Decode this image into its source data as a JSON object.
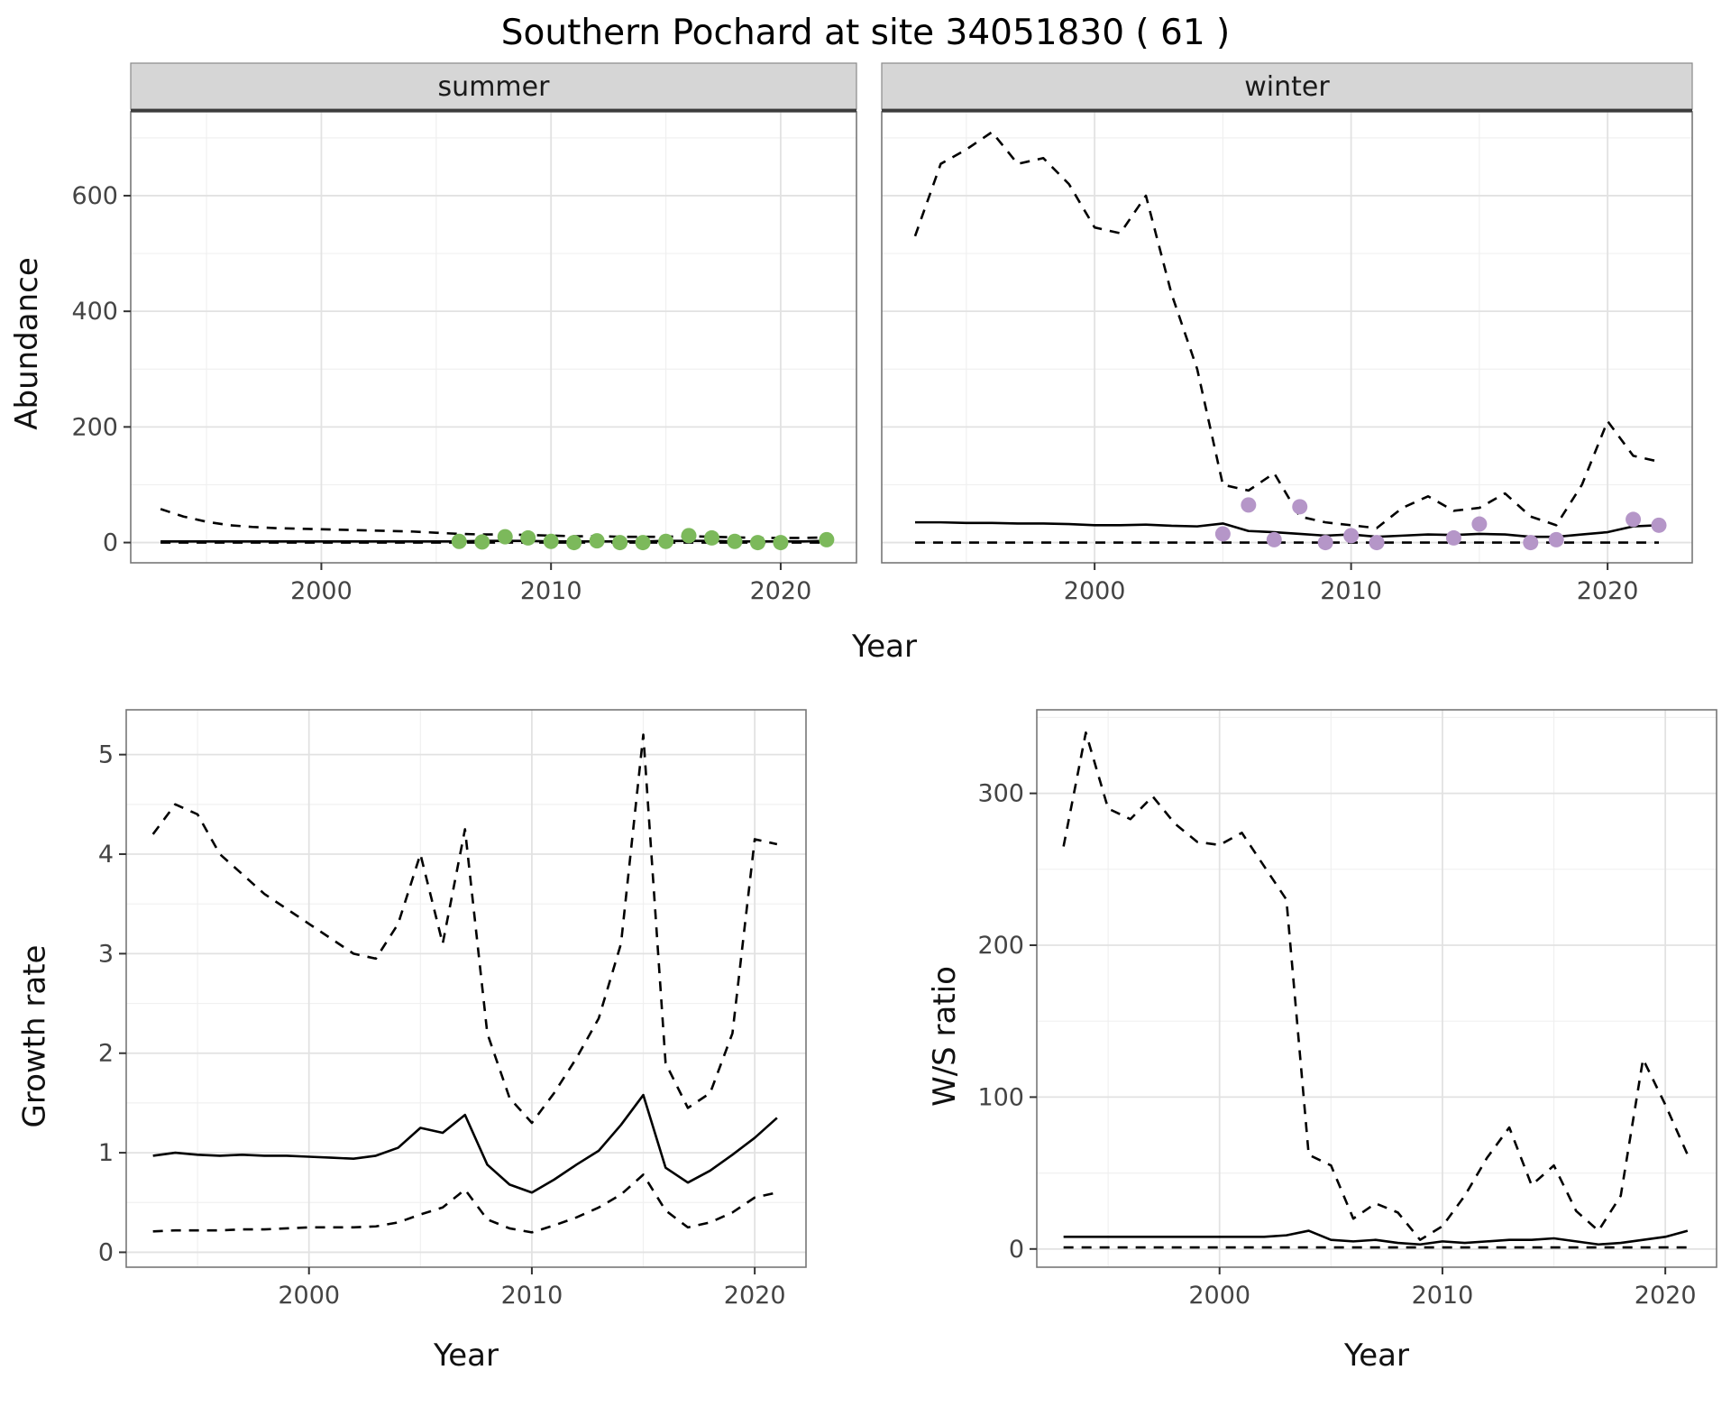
{
  "title": "Southern Pochard at site 34051830 ( 61 )",
  "xlabel": "Year",
  "colors": {
    "summer_points": "#7CB95B",
    "winter_points": "#B596C8",
    "line": "#000000",
    "strip_fill": "#d6d6d6",
    "grid_major": "#e2e2e2",
    "grid_minor": "#f0f0f0",
    "panel_border": "#777777"
  },
  "chart_data": [
    {
      "type": "line",
      "facet": "summer",
      "ylabel": "Abundance",
      "xlabel": "Year",
      "xlim": [
        1991.7,
        2023.3
      ],
      "ylim": [
        -35,
        745
      ],
      "xticks": [
        2000,
        2010,
        2020
      ],
      "yticks": [
        0,
        200,
        400,
        600
      ],
      "xminor": [
        1995,
        2005,
        2015
      ],
      "yminor": [
        100,
        300,
        500,
        700
      ],
      "show_ytick_labels": true,
      "years": [
        1993,
        1994,
        1995,
        1996,
        1997,
        1998,
        1999,
        2000,
        2001,
        2002,
        2003,
        2004,
        2005,
        2006,
        2007,
        2008,
        2009,
        2010,
        2011,
        2012,
        2013,
        2014,
        2015,
        2016,
        2017,
        2018,
        2019,
        2020,
        2021,
        2022
      ],
      "series": [
        {
          "name": "upper_ci",
          "style": "dashed",
          "values": [
            58,
            45,
            36,
            30,
            27,
            25,
            24,
            23,
            22,
            21,
            20,
            19,
            17,
            15,
            14,
            14,
            13,
            12,
            11,
            11,
            10,
            10,
            10,
            11,
            10,
            9,
            8,
            8,
            8,
            9
          ]
        },
        {
          "name": "estimate",
          "style": "solid",
          "values": [
            2,
            2,
            2,
            2,
            2,
            2,
            2,
            2,
            2,
            2,
            2,
            2,
            2,
            2,
            3,
            3,
            3,
            2,
            2,
            2,
            2,
            2,
            3,
            3,
            3,
            2,
            2,
            2,
            2,
            3
          ]
        },
        {
          "name": "lower_ci",
          "style": "dashed",
          "values": [
            0,
            0,
            0,
            0,
            0,
            0,
            0,
            0,
            0,
            0,
            0,
            0,
            0,
            0,
            0,
            0,
            0,
            0,
            0,
            0,
            0,
            0,
            0,
            0,
            0,
            0,
            0,
            0,
            0,
            0
          ]
        }
      ],
      "points": {
        "name": "observed-summer-counts",
        "color": "#7CB95B",
        "x": [
          2006,
          2007,
          2008,
          2009,
          2010,
          2011,
          2012,
          2013,
          2014,
          2015,
          2016,
          2017,
          2018,
          2019,
          2020,
          2022
        ],
        "y": [
          2,
          1,
          10,
          8,
          2,
          0,
          3,
          0,
          0,
          2,
          12,
          8,
          2,
          0,
          0,
          5
        ]
      }
    },
    {
      "type": "line",
      "facet": "winter",
      "ylabel": "Abundance",
      "xlabel": "Year",
      "xlim": [
        1991.7,
        2023.3
      ],
      "ylim": [
        -35,
        745
      ],
      "xticks": [
        2000,
        2010,
        2020
      ],
      "yticks": [
        0,
        200,
        400,
        600
      ],
      "xminor": [
        1995,
        2005,
        2015
      ],
      "yminor": [
        100,
        300,
        500,
        700
      ],
      "show_ytick_labels": false,
      "years": [
        1993,
        1994,
        1995,
        1996,
        1997,
        1998,
        1999,
        2000,
        2001,
        2002,
        2003,
        2004,
        2005,
        2006,
        2007,
        2008,
        2009,
        2010,
        2011,
        2012,
        2013,
        2014,
        2015,
        2016,
        2017,
        2018,
        2019,
        2020,
        2021,
        2022
      ],
      "series": [
        {
          "name": "upper_ci",
          "style": "dashed",
          "values": [
            530,
            655,
            680,
            710,
            655,
            665,
            620,
            545,
            535,
            600,
            430,
            300,
            100,
            90,
            120,
            45,
            35,
            30,
            25,
            60,
            80,
            55,
            60,
            85,
            45,
            30,
            100,
            210,
            150,
            140
          ]
        },
        {
          "name": "estimate",
          "style": "solid",
          "values": [
            35,
            35,
            34,
            34,
            33,
            33,
            32,
            30,
            30,
            31,
            29,
            28,
            33,
            20,
            18,
            15,
            12,
            14,
            10,
            12,
            14,
            13,
            15,
            14,
            10,
            10,
            14,
            18,
            28,
            30
          ]
        },
        {
          "name": "lower_ci",
          "style": "dashed",
          "values": [
            0,
            0,
            0,
            0,
            0,
            0,
            0,
            0,
            0,
            0,
            0,
            0,
            0,
            0,
            0,
            0,
            0,
            0,
            0,
            0,
            0,
            0,
            0,
            0,
            0,
            0,
            0,
            0,
            0,
            0
          ]
        }
      ],
      "points": {
        "name": "observed-winter-counts",
        "color": "#B596C8",
        "x": [
          2005,
          2006,
          2007,
          2008,
          2009,
          2010,
          2011,
          2014,
          2015,
          2017,
          2018,
          2021,
          2022
        ],
        "y": [
          15,
          65,
          5,
          62,
          0,
          12,
          0,
          8,
          32,
          0,
          5,
          40,
          30
        ]
      }
    },
    {
      "type": "line",
      "facet": null,
      "ylabel": "Growth rate",
      "xlabel": "Year",
      "xlim": [
        1991.8,
        2022.3
      ],
      "ylim": [
        -0.15,
        5.45
      ],
      "xticks": [
        2000,
        2010,
        2020
      ],
      "yticks": [
        0,
        1,
        2,
        3,
        4,
        5
      ],
      "xminor": [
        1995,
        2005,
        2015
      ],
      "yminor": [
        0.5,
        1.5,
        2.5,
        3.5,
        4.5
      ],
      "show_ytick_labels": true,
      "years": [
        1993,
        1994,
        1995,
        1996,
        1997,
        1998,
        1999,
        2000,
        2001,
        2002,
        2003,
        2004,
        2005,
        2006,
        2007,
        2008,
        2009,
        2010,
        2011,
        2012,
        2013,
        2014,
        2015,
        2016,
        2017,
        2018,
        2019,
        2020,
        2021
      ],
      "series": [
        {
          "name": "upper_ci",
          "style": "dashed",
          "values": [
            4.2,
            4.5,
            4.4,
            4.0,
            3.8,
            3.6,
            3.45,
            3.3,
            3.15,
            3.0,
            2.95,
            3.3,
            4.0,
            3.1,
            4.25,
            2.2,
            1.55,
            1.3,
            1.6,
            1.95,
            2.35,
            3.1,
            5.2,
            1.9,
            1.45,
            1.6,
            2.2,
            4.15,
            4.1
          ]
        },
        {
          "name": "estimate",
          "style": "solid",
          "values": [
            0.97,
            1.0,
            0.98,
            0.97,
            0.98,
            0.97,
            0.97,
            0.96,
            0.95,
            0.94,
            0.97,
            1.05,
            1.25,
            1.2,
            1.38,
            0.88,
            0.68,
            0.6,
            0.73,
            0.88,
            1.02,
            1.28,
            1.58,
            0.85,
            0.7,
            0.82,
            0.98,
            1.15,
            1.35
          ]
        },
        {
          "name": "lower_ci",
          "style": "dashed",
          "values": [
            0.21,
            0.22,
            0.22,
            0.22,
            0.23,
            0.23,
            0.24,
            0.25,
            0.25,
            0.25,
            0.26,
            0.3,
            0.38,
            0.45,
            0.63,
            0.33,
            0.24,
            0.2,
            0.27,
            0.35,
            0.45,
            0.58,
            0.78,
            0.42,
            0.25,
            0.3,
            0.4,
            0.55,
            0.6
          ]
        }
      ],
      "points": null
    },
    {
      "type": "line",
      "facet": null,
      "ylabel": "W/S ratio",
      "xlabel": "Year",
      "xlim": [
        1991.8,
        2022.3
      ],
      "ylim": [
        -12,
        355
      ],
      "xticks": [
        2000,
        2010,
        2020
      ],
      "yticks": [
        0,
        100,
        200,
        300
      ],
      "xminor": [
        1995,
        2005,
        2015
      ],
      "yminor": [
        50,
        150,
        250,
        350
      ],
      "show_ytick_labels": true,
      "years": [
        1993,
        1994,
        1995,
        1996,
        1997,
        1998,
        1999,
        2000,
        2001,
        2002,
        2003,
        2004,
        2005,
        2006,
        2007,
        2008,
        2009,
        2010,
        2011,
        2012,
        2013,
        2014,
        2015,
        2016,
        2017,
        2018,
        2019,
        2020,
        2021
      ],
      "series": [
        {
          "name": "upper_ci",
          "style": "dashed",
          "values": [
            265,
            340,
            290,
            283,
            298,
            280,
            268,
            266,
            274,
            252,
            230,
            62,
            55,
            20,
            30,
            24,
            6,
            15,
            35,
            60,
            80,
            42,
            55,
            25,
            12,
            35,
            125,
            95,
            62
          ]
        },
        {
          "name": "estimate",
          "style": "solid",
          "values": [
            8,
            8,
            8,
            8,
            8,
            8,
            8,
            8,
            8,
            8,
            9,
            12,
            6,
            5,
            6,
            4,
            3,
            5,
            4,
            5,
            6,
            6,
            7,
            5,
            3,
            4,
            6,
            8,
            12
          ]
        },
        {
          "name": "lower_ci",
          "style": "dashed",
          "values": [
            1,
            1,
            1,
            1,
            1,
            1,
            1,
            1,
            1,
            1,
            1,
            1,
            1,
            1,
            1,
            1,
            1,
            1,
            1,
            1,
            1,
            1,
            1,
            1,
            1,
            1,
            1,
            1,
            1
          ]
        }
      ],
      "points": null
    }
  ]
}
